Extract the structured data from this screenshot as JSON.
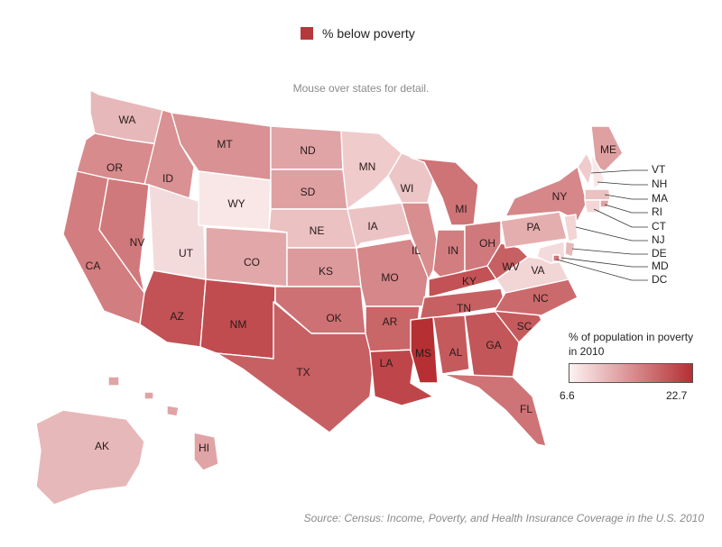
{
  "legend": {
    "label": "% below poverty",
    "color": "#b5383c"
  },
  "hint": "Mouse over states for detail.",
  "scale": {
    "title": "% of population in poverty in 2010",
    "min": 6.6,
    "max": 22.7,
    "min_label": "6.6",
    "max_label": "22.7",
    "low_color": "#fdf2f2",
    "high_color": "#b52f33"
  },
  "source": "Source: Census: Income, Poverty, and Health Insurance Coverage in the U.S. 2010",
  "states": [
    {
      "code": "WA",
      "level": 0.3
    },
    {
      "code": "OR",
      "level": 0.53
    },
    {
      "code": "CA",
      "level": 0.6
    },
    {
      "code": "ID",
      "level": 0.5
    },
    {
      "code": "NV",
      "level": 0.62
    },
    {
      "code": "AZ",
      "level": 0.82
    },
    {
      "code": "UT",
      "level": 0.12
    },
    {
      "code": "MT",
      "level": 0.5
    },
    {
      "code": "WY",
      "level": 0.06
    },
    {
      "code": "CO",
      "level": 0.38
    },
    {
      "code": "NM",
      "level": 0.85
    },
    {
      "code": "ND",
      "level": 0.4
    },
    {
      "code": "SD",
      "level": 0.42
    },
    {
      "code": "NE",
      "level": 0.25
    },
    {
      "code": "KS",
      "level": 0.45
    },
    {
      "code": "OK",
      "level": 0.66
    },
    {
      "code": "TX",
      "level": 0.75
    },
    {
      "code": "MN",
      "level": 0.2
    },
    {
      "code": "IA",
      "level": 0.24
    },
    {
      "code": "MO",
      "level": 0.55
    },
    {
      "code": "AR",
      "level": 0.72
    },
    {
      "code": "LA",
      "level": 0.88
    },
    {
      "code": "WI",
      "level": 0.23
    },
    {
      "code": "IL",
      "level": 0.52
    },
    {
      "code": "MI",
      "level": 0.65
    },
    {
      "code": "IN",
      "level": 0.6
    },
    {
      "code": "OH",
      "level": 0.62
    },
    {
      "code": "KY",
      "level": 0.82
    },
    {
      "code": "TN",
      "level": 0.75
    },
    {
      "code": "MS",
      "level": 1.0
    },
    {
      "code": "AL",
      "level": 0.78
    },
    {
      "code": "GA",
      "level": 0.8
    },
    {
      "code": "FL",
      "level": 0.65
    },
    {
      "code": "SC",
      "level": 0.78
    },
    {
      "code": "NC",
      "level": 0.7
    },
    {
      "code": "VA",
      "level": 0.15
    },
    {
      "code": "WV",
      "level": 0.75
    },
    {
      "code": "PA",
      "level": 0.35
    },
    {
      "code": "NY",
      "level": 0.55
    },
    {
      "code": "ME",
      "level": 0.42
    },
    {
      "code": "VT",
      "level": 0.2
    },
    {
      "code": "NH",
      "level": 0.06
    },
    {
      "code": "MA",
      "level": 0.25
    },
    {
      "code": "RI",
      "level": 0.4
    },
    {
      "code": "CT",
      "level": 0.14
    },
    {
      "code": "NJ",
      "level": 0.15
    },
    {
      "code": "DE",
      "level": 0.3
    },
    {
      "code": "MD",
      "level": 0.12
    },
    {
      "code": "DC",
      "level": 0.65
    },
    {
      "code": "AK",
      "level": 0.3
    },
    {
      "code": "HI",
      "level": 0.4
    }
  ]
}
